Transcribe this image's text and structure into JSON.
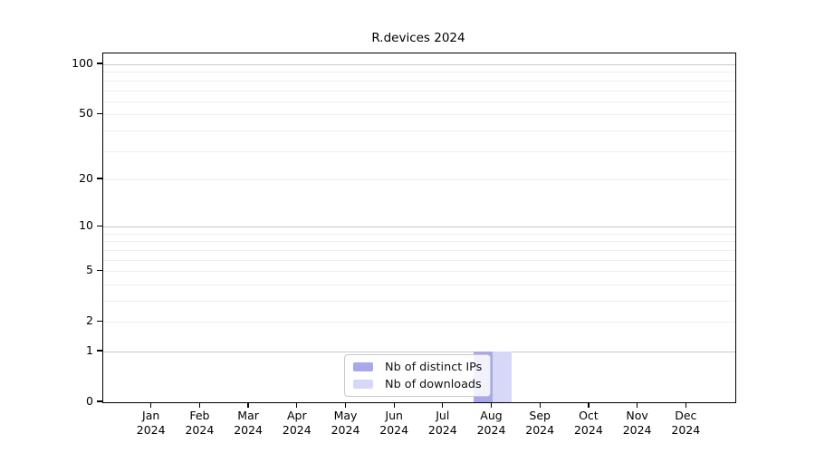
{
  "chart_data": {
    "type": "bar",
    "title": "R.devices 2024",
    "x": {
      "months": [
        "Jan",
        "Feb",
        "Mar",
        "Apr",
        "May",
        "Jun",
        "Jul",
        "Aug",
        "Sep",
        "Oct",
        "Nov",
        "Dec"
      ],
      "year": "2024"
    },
    "y": {
      "scale": "log1p",
      "range": [
        0,
        100
      ],
      "tick_labels": [
        "100",
        "50",
        "20",
        "10",
        "5",
        "2",
        "1",
        "0"
      ],
      "tick_values": [
        100,
        50,
        20,
        10,
        5,
        2,
        1,
        0
      ],
      "major_gridlines": [
        100,
        10,
        1
      ],
      "minor_gridlines": [
        90,
        80,
        70,
        60,
        50,
        40,
        30,
        20,
        9,
        8,
        7,
        6,
        5,
        4,
        3,
        2
      ],
      "grid": true
    },
    "series": [
      {
        "name": "Nb of distinct IPs",
        "color": "#a8a8eb",
        "values": [
          0,
          0,
          0,
          0,
          0,
          0,
          0,
          1,
          0,
          0,
          0,
          0
        ]
      },
      {
        "name": "Nb of downloads",
        "color": "#d7d7f7",
        "values": [
          0,
          0,
          0,
          0,
          0,
          0,
          0,
          1,
          0,
          0,
          0,
          0
        ]
      }
    ],
    "legend": {
      "position": "bottom-center",
      "entries": [
        "Nb of distinct IPs",
        "Nb of downloads"
      ]
    }
  },
  "colors": {
    "axis": "#000000",
    "major_grid": "#c8c8c8",
    "minor_grid": "#efefef",
    "background": "#ffffff"
  }
}
